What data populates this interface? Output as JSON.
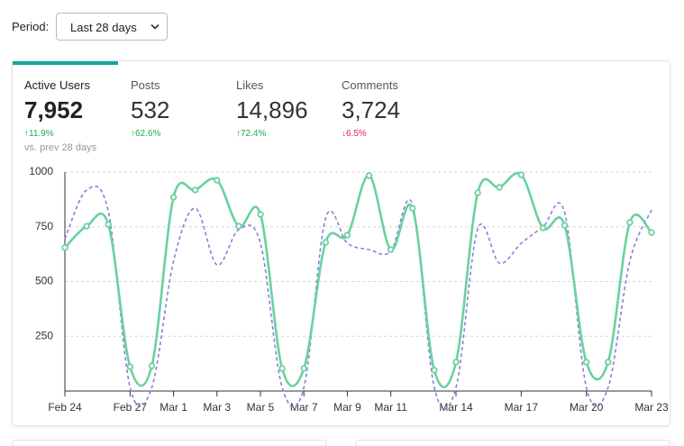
{
  "period": {
    "label": "Period:",
    "value": "Last 28 days"
  },
  "metrics": [
    {
      "name": "Active Users",
      "value": "7,952",
      "change": "↑11.9%",
      "trend": "up",
      "note": "vs. prev 28 days"
    },
    {
      "name": "Posts",
      "value": "532",
      "change": "↑62.6%",
      "trend": "up"
    },
    {
      "name": "Likes",
      "value": "14,896",
      "change": "↑72.4%",
      "trend": "up"
    },
    {
      "name": "Comments",
      "value": "3,724",
      "change": "↓6.5%",
      "trend": "down"
    }
  ],
  "chart_data": {
    "type": "line",
    "categories": [
      "Feb 24",
      null,
      null,
      "Feb 27",
      null,
      "Mar 1",
      null,
      "Mar 3",
      null,
      "Mar 5",
      null,
      "Mar 7",
      null,
      "Mar 9",
      null,
      "Mar 11",
      null,
      null,
      "Mar 14",
      null,
      null,
      "Mar 17",
      null,
      null,
      "Mar 20",
      null,
      null,
      "Mar 23"
    ],
    "series": [
      {
        "color": "#8b80d8",
        "dashed": true,
        "markers": false,
        "values": [
          695,
          918,
          819,
          16,
          16,
          593,
          835,
          576,
          737,
          675,
          16,
          16,
          790,
          675,
          646,
          638,
          852,
          16,
          16,
          741,
          584,
          675,
          749,
          815,
          16,
          16,
          593,
          827
        ]
      },
      {
        "color": "#6ad19e",
        "dashed": false,
        "markers": true,
        "values": [
          655,
          753,
          761,
          111,
          115,
          885,
          918,
          963,
          753,
          807,
          103,
          103,
          679,
          712,
          984,
          646,
          835,
          95,
          132,
          905,
          930,
          988,
          745,
          757,
          132,
          132,
          770,
          724
        ]
      }
    ],
    "ylim": [
      0,
      1000
    ],
    "yticks": [
      250,
      500,
      750,
      1000
    ],
    "grid": true
  }
}
